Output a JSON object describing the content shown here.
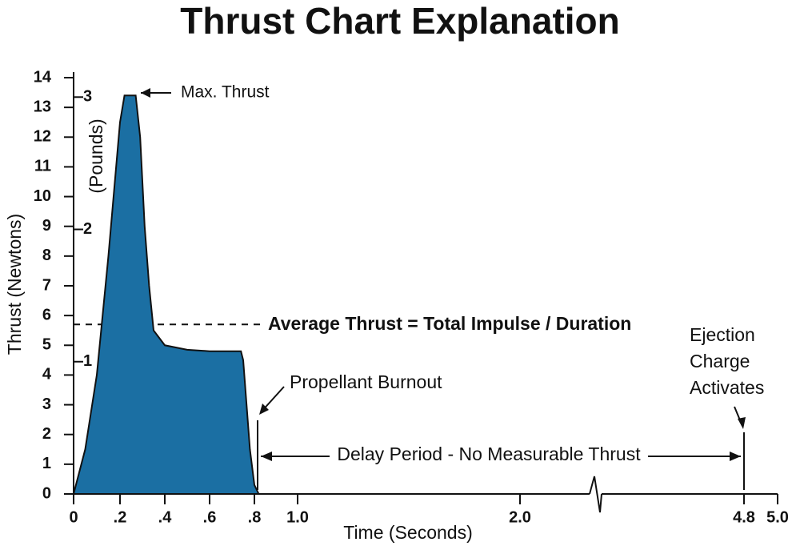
{
  "chart_data": {
    "type": "area",
    "title": "Thrust Chart Explanation",
    "x_label": "Time (Seconds)",
    "y_label": "Thrust (Newtons)",
    "y2_label": "(Pounds)",
    "x": [
      0,
      0.05,
      0.1,
      0.15,
      0.2,
      0.22,
      0.27,
      0.29,
      0.31,
      0.33,
      0.35,
      0.4,
      0.5,
      0.6,
      0.74,
      0.75,
      0.78,
      0.8,
      0.82
    ],
    "series": [
      {
        "color": "#1b6fa3",
        "values": [
          0,
          1.5,
          4,
          8,
          12.5,
          13.4,
          13.4,
          12,
          9,
          7,
          5.5,
          5,
          4.85,
          4.8,
          4.8,
          4.5,
          1.5,
          0.3,
          0
        ]
      }
    ],
    "xlim": [
      0,
      5.0
    ],
    "xticks": [
      0,
      {
        "value": 0.2,
        "label": ".2"
      },
      {
        "value": 0.4,
        "label": ".4"
      },
      {
        "value": 0.6,
        "label": ".6"
      },
      {
        "value": 0.8,
        "label": ".8"
      },
      {
        "value": 1.0,
        "label": "1.0"
      },
      {
        "value": 2.0,
        "label": "2.0"
      },
      4.8,
      {
        "value": 5.0,
        "label": "5.0"
      }
    ],
    "ylim": [
      0,
      14
    ],
    "yticks": [
      0,
      1,
      2,
      3,
      4,
      5,
      6,
      7,
      8,
      9,
      10,
      11,
      12,
      13,
      14
    ],
    "y2lim": [
      0,
      3.147
    ],
    "y2ticks": [
      1,
      2,
      3
    ],
    "average_thrust": {
      "label": "Average Thrust = Total Impulse / Duration",
      "value": 5.7
    },
    "annotations": {
      "max_thrust": "Max. Thrust",
      "burnout": "Propellant Burnout",
      "delay": "Delay Period - No Measurable Thrust",
      "ejection": [
        "Ejection",
        "Charge",
        "Activates"
      ]
    }
  }
}
